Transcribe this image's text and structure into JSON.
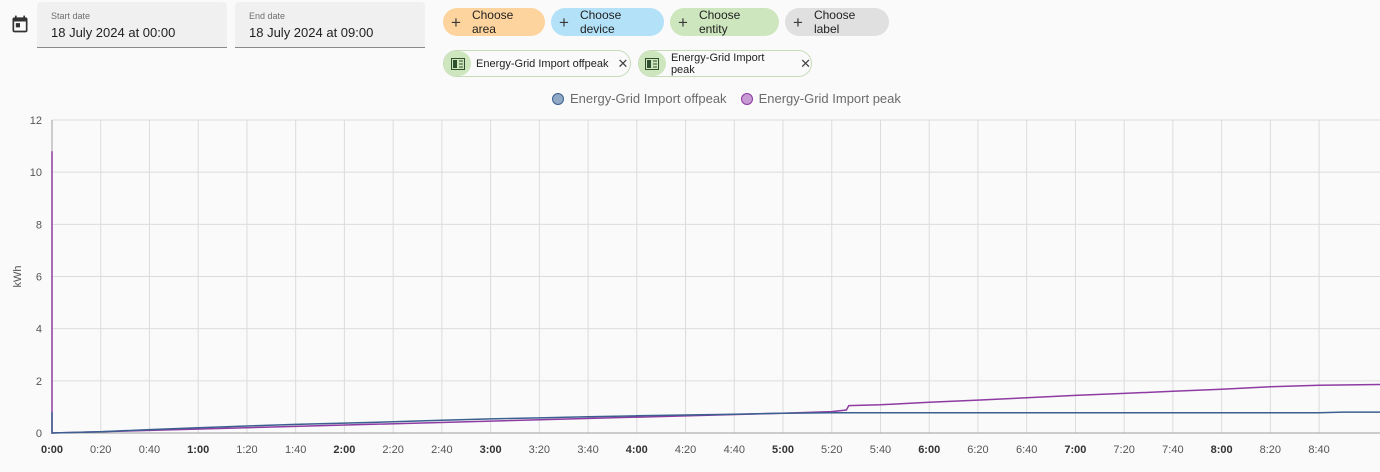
{
  "date_range": {
    "start_label": "Start date",
    "start_value": "18 July 2024 at 00:00",
    "end_label": "End date",
    "end_value": "18 July 2024 at 09:00"
  },
  "target_picker": {
    "choose_area": "Choose area",
    "choose_device": "Choose device",
    "choose_entity": "Choose entity",
    "choose_label": "Choose label"
  },
  "selected_entities": [
    {
      "label": "Energy-Grid Import offpeak",
      "icon": "meter-icon"
    },
    {
      "label": "Energy-Grid Import peak",
      "icon": "meter-icon"
    }
  ],
  "colors": {
    "offpeak": "#3b5f8f",
    "peak": "#8e3ba2",
    "offpeak_legend_fill": "#8fa9c7",
    "peak_legend_fill": "#c79ad3"
  },
  "chart_data": {
    "type": "line",
    "ylabel": "kWh",
    "ylim": [
      0,
      12
    ],
    "yticks": [
      0,
      2,
      4,
      6,
      8,
      10,
      12
    ],
    "xlim_minutes": [
      0,
      545
    ],
    "xticks": [
      "0:00",
      "0:20",
      "0:40",
      "1:00",
      "1:20",
      "1:40",
      "2:00",
      "2:20",
      "2:40",
      "3:00",
      "3:20",
      "3:40",
      "4:00",
      "4:20",
      "4:40",
      "5:00",
      "5:20",
      "5:40",
      "6:00",
      "6:20",
      "6:40",
      "7:00",
      "7:20",
      "7:40",
      "8:00",
      "8:20",
      "8:40"
    ],
    "xticks_bold": [
      "0:00",
      "1:00",
      "2:00",
      "3:00",
      "4:00",
      "5:00",
      "6:00",
      "7:00",
      "8:00"
    ],
    "legend_position": "top",
    "series": [
      {
        "name": "Energy-Grid Import offpeak",
        "points": [
          [
            0,
            0.8
          ],
          [
            0,
            0
          ],
          [
            20,
            0.05
          ],
          [
            40,
            0.13
          ],
          [
            60,
            0.2
          ],
          [
            80,
            0.27
          ],
          [
            100,
            0.33
          ],
          [
            120,
            0.38
          ],
          [
            140,
            0.43
          ],
          [
            160,
            0.49
          ],
          [
            180,
            0.54
          ],
          [
            200,
            0.58
          ],
          [
            220,
            0.62
          ],
          [
            240,
            0.66
          ],
          [
            260,
            0.69
          ],
          [
            280,
            0.72
          ],
          [
            300,
            0.76
          ],
          [
            320,
            0.78
          ],
          [
            340,
            0.78
          ],
          [
            360,
            0.78
          ],
          [
            380,
            0.78
          ],
          [
            400,
            0.78
          ],
          [
            420,
            0.78
          ],
          [
            440,
            0.78
          ],
          [
            460,
            0.78
          ],
          [
            480,
            0.78
          ],
          [
            520,
            0.78
          ],
          [
            530,
            0.8
          ],
          [
            545,
            0.8
          ]
        ]
      },
      {
        "name": "Energy-Grid Import peak",
        "points": [
          [
            0,
            10.8
          ],
          [
            0,
            0
          ],
          [
            300,
            0.76
          ],
          [
            320,
            0.82
          ],
          [
            326,
            0.88
          ],
          [
            327,
            1.05
          ],
          [
            340,
            1.08
          ],
          [
            360,
            1.18
          ],
          [
            380,
            1.26
          ],
          [
            400,
            1.35
          ],
          [
            420,
            1.44
          ],
          [
            440,
            1.52
          ],
          [
            460,
            1.6
          ],
          [
            480,
            1.68
          ],
          [
            500,
            1.77
          ],
          [
            520,
            1.83
          ],
          [
            545,
            1.86
          ]
        ]
      }
    ]
  }
}
